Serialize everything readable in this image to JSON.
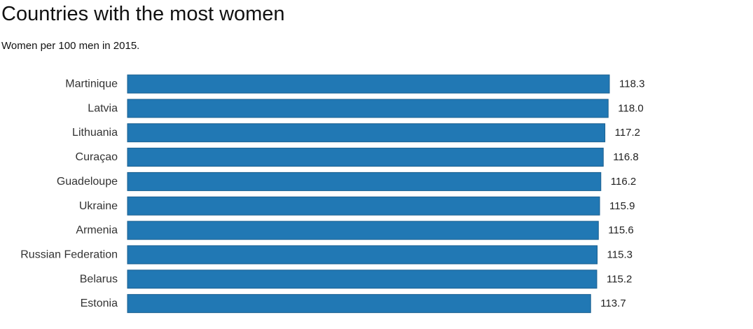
{
  "chart_data": {
    "type": "bar",
    "orientation": "horizontal",
    "title": "Countries with the most women",
    "subtitle": "Women per 100 men in 2015.",
    "categories": [
      "Martinique",
      "Latvia",
      "Lithuania",
      "Curaçao",
      "Guadeloupe",
      "Ukraine",
      "Armenia",
      "Russian Federation",
      "Belarus",
      "Estonia"
    ],
    "values": [
      118.3,
      118.0,
      117.2,
      116.8,
      116.2,
      115.9,
      115.6,
      115.3,
      115.2,
      113.7
    ],
    "value_labels": [
      "118.3",
      "118.0",
      "117.2",
      "116.8",
      "116.2",
      "115.9",
      "115.6",
      "115.3",
      "115.2",
      "113.7"
    ],
    "xlim": [
      0,
      118.3
    ],
    "grid": false,
    "bar_color": "#2178b4",
    "xlabel": "",
    "ylabel": ""
  }
}
